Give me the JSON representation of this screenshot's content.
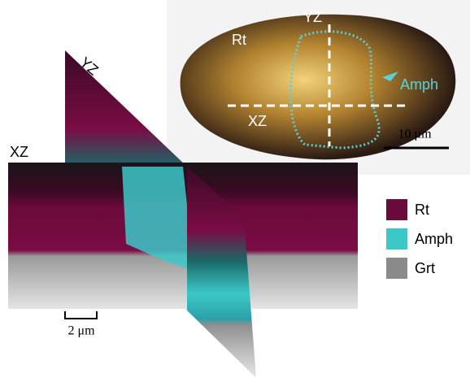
{
  "micrograph": {
    "rt": "Rt",
    "yz": "YZ",
    "xz": "XZ",
    "amph": "Amph",
    "scale_bar": "10 μm"
  },
  "tomography": {
    "yz": "YZ",
    "xz": "XZ",
    "scale_bar": "2 μm"
  },
  "legend": [
    {
      "label": "Rt",
      "color": "#6a0a3a"
    },
    {
      "label": "Amph",
      "color": "#3cc8c8"
    },
    {
      "label": "Grt",
      "color": "#8a8a8a"
    }
  ]
}
